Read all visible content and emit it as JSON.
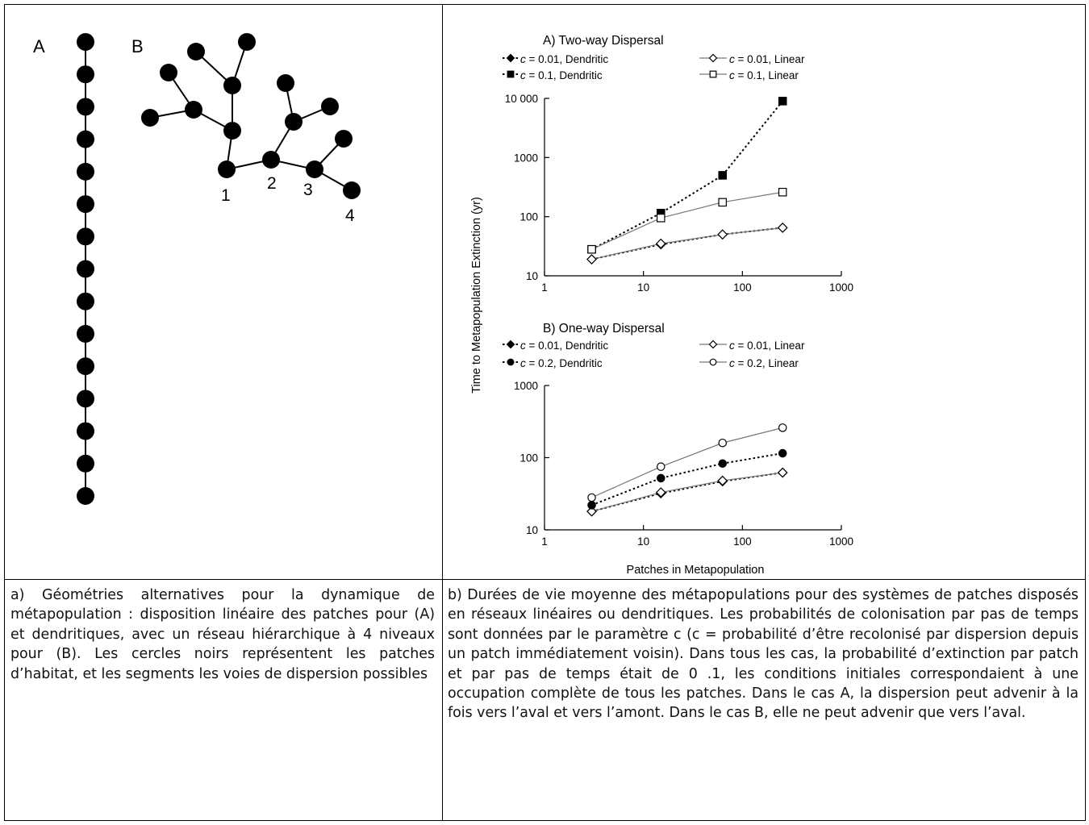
{
  "diagram": {
    "label_a": "A",
    "label_b": "B",
    "levels": [
      "1",
      "2",
      "3",
      "4"
    ]
  },
  "chart_data": [
    {
      "type": "line",
      "title": "A) Two-way Dispersal",
      "xlabel": "Patches in Metapopulation",
      "ylabel": "Time to Metapopulation Extinction (yr)",
      "xscale": "log",
      "yscale": "log",
      "xlim": [
        1,
        1000
      ],
      "ylim": [
        10,
        10000
      ],
      "xticks": [
        "1",
        "10",
        "100",
        "1000"
      ],
      "yticks": [
        "10",
        "100",
        "1000",
        "10 000"
      ],
      "legend": "top",
      "x": [
        3,
        15,
        63,
        255
      ],
      "series": [
        {
          "name": "c = 0.01, Dendritic",
          "c_label": "c",
          "rest": " = 0.01, Dendritic",
          "marker": "diamond-filled",
          "line": "dotted",
          "values": [
            19,
            34,
            50,
            65
          ]
        },
        {
          "name": "c = 0.01, Linear",
          "c_label": "c",
          "rest": " = 0.01, Linear",
          "marker": "diamond-open",
          "line": "solid",
          "values": [
            19,
            35,
            50,
            65
          ]
        },
        {
          "name": "c = 0.1, Dendritic",
          "c_label": "c",
          "rest": " = 0.1, Dendritic",
          "marker": "square-filled",
          "line": "dotted",
          "values": [
            28,
            115,
            500,
            9000
          ]
        },
        {
          "name": "c = 0.1, Linear",
          "c_label": "c",
          "rest": " = 0.1, Linear",
          "marker": "square-open",
          "line": "solid",
          "values": [
            28,
            95,
            175,
            260
          ]
        }
      ]
    },
    {
      "type": "line",
      "title": "B) One-way Dispersal",
      "xlabel": "Patches in Metapopulation",
      "ylabel": "Time to Metapopulation Extinction (yr)",
      "xscale": "log",
      "yscale": "log",
      "xlim": [
        1,
        1000
      ],
      "ylim": [
        10,
        1000
      ],
      "xticks": [
        "1",
        "10",
        "100",
        "1000"
      ],
      "yticks": [
        "10",
        "100",
        "1000"
      ],
      "legend": "top",
      "x": [
        3,
        15,
        63,
        255
      ],
      "series": [
        {
          "name": "c = 0.01, Dendritic",
          "c_label": "c",
          "rest": " = 0.01, Dendritic",
          "marker": "diamond-filled",
          "line": "dotted",
          "values": [
            18,
            32,
            47,
            62
          ]
        },
        {
          "name": "c = 0.01, Linear",
          "c_label": "c",
          "rest": " = 0.01, Linear",
          "marker": "diamond-open",
          "line": "solid",
          "values": [
            18,
            33,
            48,
            62
          ]
        },
        {
          "name": "c = 0.2, Dendritic",
          "c_label": "c",
          "rest": " = 0.2, Dendritic",
          "marker": "circle-filled",
          "line": "dotted",
          "values": [
            22,
            52,
            83,
            115
          ]
        },
        {
          "name": "c = 0.2, Linear",
          "c_label": "c",
          "rest": " = 0.2, Linear",
          "marker": "circle-open",
          "line": "solid",
          "values": [
            28,
            75,
            160,
            260
          ]
        }
      ]
    }
  ],
  "captions": {
    "a": "a) Géométries alternatives pour la dynamique de métapopulation : disposition linéaire des patches pour (A) et dendritiques, avec un réseau hiérarchique à 4 niveaux pour (B). Les cercles noirs représentent les patches d’habitat, et les segments les voies de dispersion possibles",
    "b": "b) Durées de vie moyenne des métapopulations pour des systèmes de patches disposés en réseaux linéaires ou dendritiques. Les probabilités de colonisation par pas de temps sont données par le paramètre c (c = probabilité d’être recolonisé par dispersion depuis un patch immédiatement voisin). Dans tous les cas, la probabilité d’extinction par patch et par pas de temps était de 0 .1, les conditions initiales correspondaient à une occupation complète de tous les patches. Dans le cas A, la dispersion peut advenir à la fois vers l’aval et vers l’amont. Dans le cas B, elle ne peut advenir que vers l’aval."
  }
}
